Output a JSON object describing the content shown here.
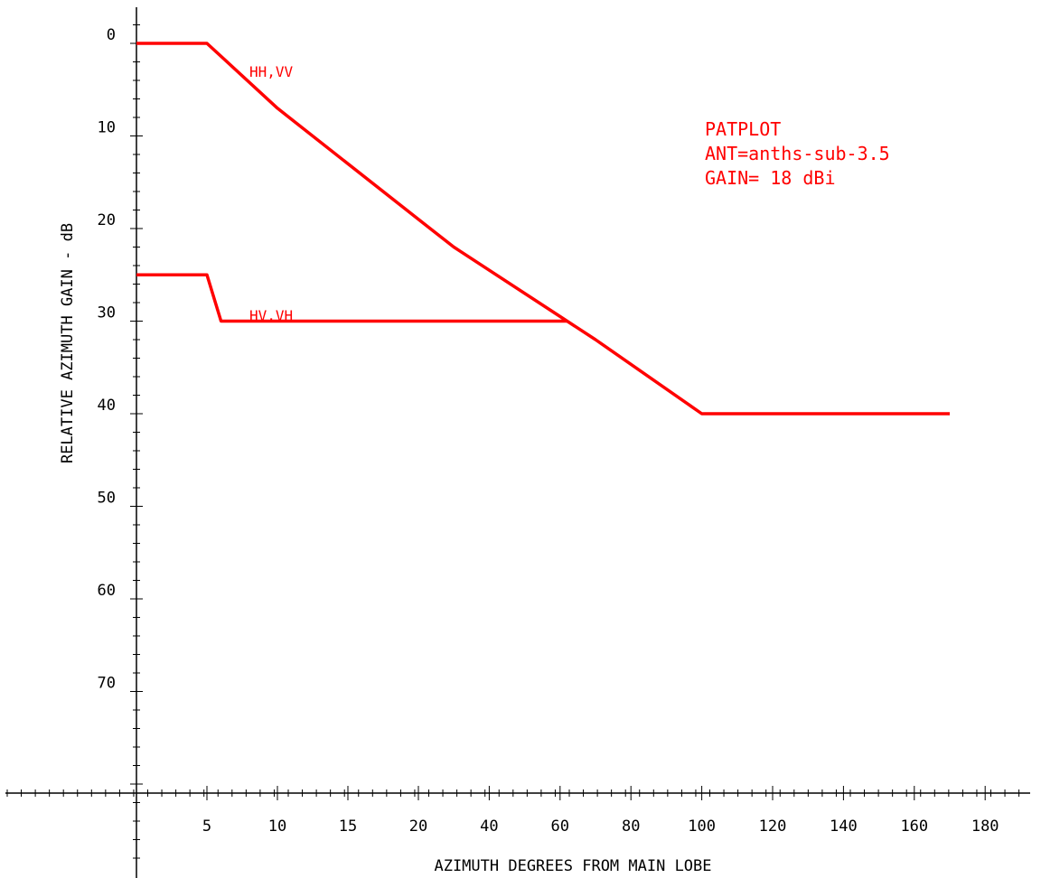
{
  "chart_data": {
    "type": "line",
    "xlabel": "AZIMUTH DEGREES FROM MAIN LOBE",
    "ylabel": "RELATIVE AZIMUTH GAIN - dB",
    "x_ticks": [
      "5",
      "10",
      "15",
      "20",
      "40",
      "60",
      "80",
      "100",
      "120",
      "140",
      "160",
      "180"
    ],
    "x_tick_values": [
      5,
      10,
      15,
      20,
      40,
      60,
      80,
      100,
      120,
      140,
      160,
      180
    ],
    "y_ticks": [
      "0",
      "10",
      "20",
      "30",
      "40",
      "50",
      "60",
      "70"
    ],
    "y_tick_values": [
      0,
      10,
      20,
      30,
      40,
      50,
      60,
      70
    ],
    "ylim": [
      -3,
      83
    ],
    "y_inverted": true,
    "x_scale": "piecewise: 0-20 deg linear, 20-180 deg compressed",
    "series": [
      {
        "name": "HH,VV",
        "x": [
          0,
          5,
          10,
          20,
          30,
          60,
          70,
          100,
          170
        ],
        "y": [
          0,
          0,
          7,
          19,
          22,
          29.5,
          32,
          40,
          40
        ]
      },
      {
        "name": "HV,VH",
        "x": [
          0,
          5,
          6,
          62
        ],
        "y": [
          25,
          25,
          30,
          30
        ]
      }
    ],
    "annotation": [
      "PATPLOT",
      "ANT=anths-sub-3.5",
      "GAIN= 18 dBi"
    ],
    "colors": {
      "series": "#ff0000",
      "axes": "#000000",
      "text_annotation": "#ff0000"
    },
    "grid": false
  }
}
